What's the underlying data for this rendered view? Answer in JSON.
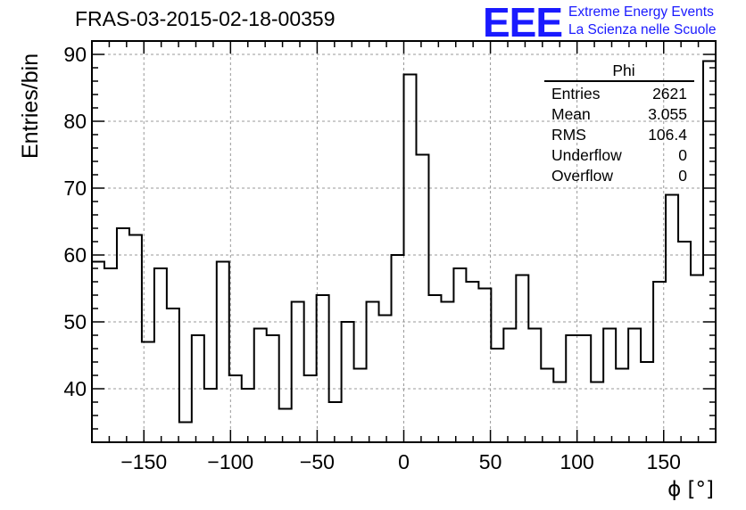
{
  "title": "FRAS-03-2015-02-18-00359",
  "logo": {
    "mark": "EEE",
    "line1": "Extreme Energy Events",
    "line2": "La Scienza nelle Scuole",
    "color": "#1a1aff"
  },
  "stats": {
    "name": "Phi",
    "rows": [
      {
        "label": "Entries",
        "value": "2621"
      },
      {
        "label": "Mean",
        "value": "3.055"
      },
      {
        "label": "RMS",
        "value": "106.4"
      },
      {
        "label": "Underflow",
        "value": "0"
      },
      {
        "label": "Overflow",
        "value": "0"
      }
    ]
  },
  "chart_data": {
    "type": "bar",
    "style": "step-histogram",
    "xlabel": "ϕ [°]",
    "ylabel": "Entries/bin",
    "xlim": [
      -180,
      180
    ],
    "ylim": [
      32,
      92
    ],
    "bin_width": 7.2,
    "bins_start": -180,
    "values": [
      59,
      58,
      64,
      63,
      47,
      58,
      52,
      35,
      48,
      40,
      59,
      42,
      40,
      49,
      48,
      37,
      53,
      42,
      54,
      38,
      50,
      43,
      53,
      51,
      60,
      87,
      75,
      54,
      53,
      58,
      56,
      55,
      46,
      49,
      57,
      49,
      43,
      41,
      48,
      48,
      41,
      49,
      43,
      49,
      44,
      56,
      69,
      62,
      57,
      89
    ],
    "x_ticks": [
      -150,
      -100,
      -50,
      0,
      50,
      100,
      150
    ],
    "x_tick_labels": [
      "−150",
      "−100",
      "−50",
      "0",
      "50",
      "100",
      "150"
    ],
    "y_ticks": [
      40,
      50,
      60,
      70,
      80,
      90
    ],
    "y_tick_labels": [
      "40",
      "50",
      "60",
      "70",
      "80",
      "90"
    ],
    "grid": true,
    "line_color": "#000000",
    "grid_color": "#999999"
  }
}
